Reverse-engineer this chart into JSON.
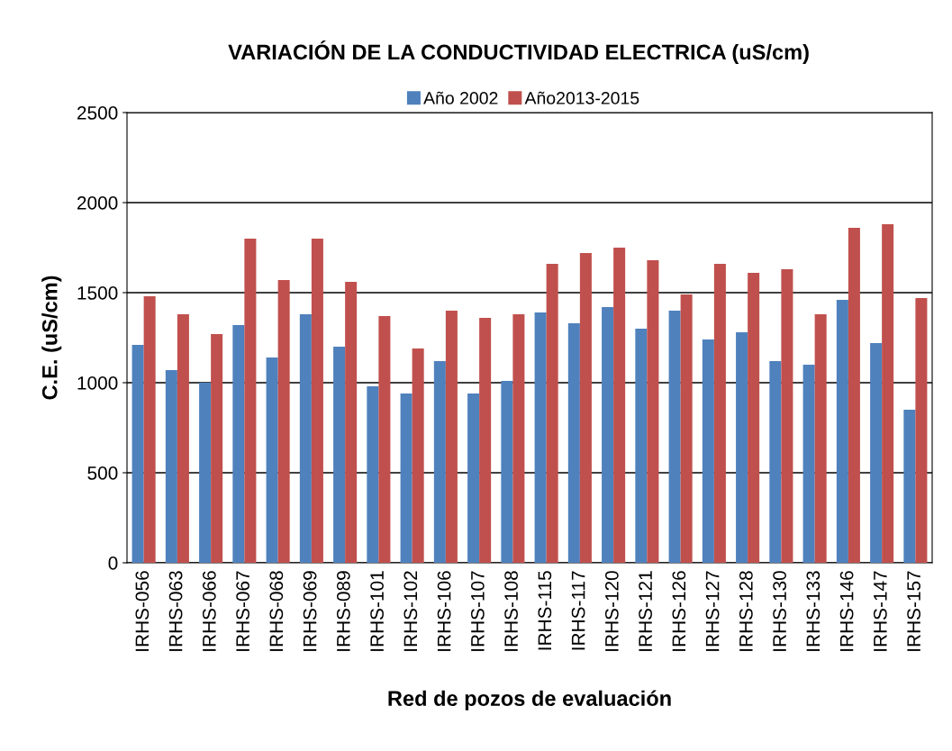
{
  "chart_data": {
    "type": "bar",
    "title": "VARIACIÓN DE LA CONDUCTIVIDAD ELECTRICA (uS/cm)",
    "xlabel": "Red de pozos de evaluación",
    "ylabel": "C.E. (uS/cm)",
    "categories": [
      "IRHS-056",
      "IRHS-063",
      "IRHS-066",
      "IRHS-067",
      "IRHS-068",
      "IRHS-069",
      "IRHS-089",
      "IRHS-101",
      "IRHS-102",
      "IRHS-106",
      "IRHS-107",
      "IRHS-108",
      "IRHS-115",
      "IRHS-117",
      "IRHS-120",
      "IRHS-121",
      "IRHS-126",
      "IRHS-127",
      "IRHS-128",
      "IRHS-130",
      "IRHS-133",
      "IRHS-146",
      "IRHS-147",
      "IRHS-157"
    ],
    "series": [
      {
        "name": "Año 2002",
        "color": "#4f81bd",
        "values": [
          1210,
          1070,
          1000,
          1320,
          1140,
          1380,
          1200,
          980,
          940,
          1120,
          940,
          1010,
          1390,
          1330,
          1420,
          1300,
          1400,
          1240,
          1280,
          1120,
          1100,
          1460,
          1220,
          850
        ]
      },
      {
        "name": "Año2013-2015",
        "color": "#c0504d",
        "values": [
          1480,
          1380,
          1270,
          1800,
          1570,
          1800,
          1560,
          1370,
          1190,
          1400,
          1360,
          1380,
          1660,
          1720,
          1750,
          1680,
          1490,
          1660,
          1610,
          1630,
          1380,
          1860,
          1880,
          1470
        ]
      }
    ],
    "ylim": [
      0,
      2500
    ],
    "yticks": [
      0,
      500,
      1000,
      1500,
      2000,
      2500
    ],
    "grid": "y",
    "legend": "top"
  }
}
